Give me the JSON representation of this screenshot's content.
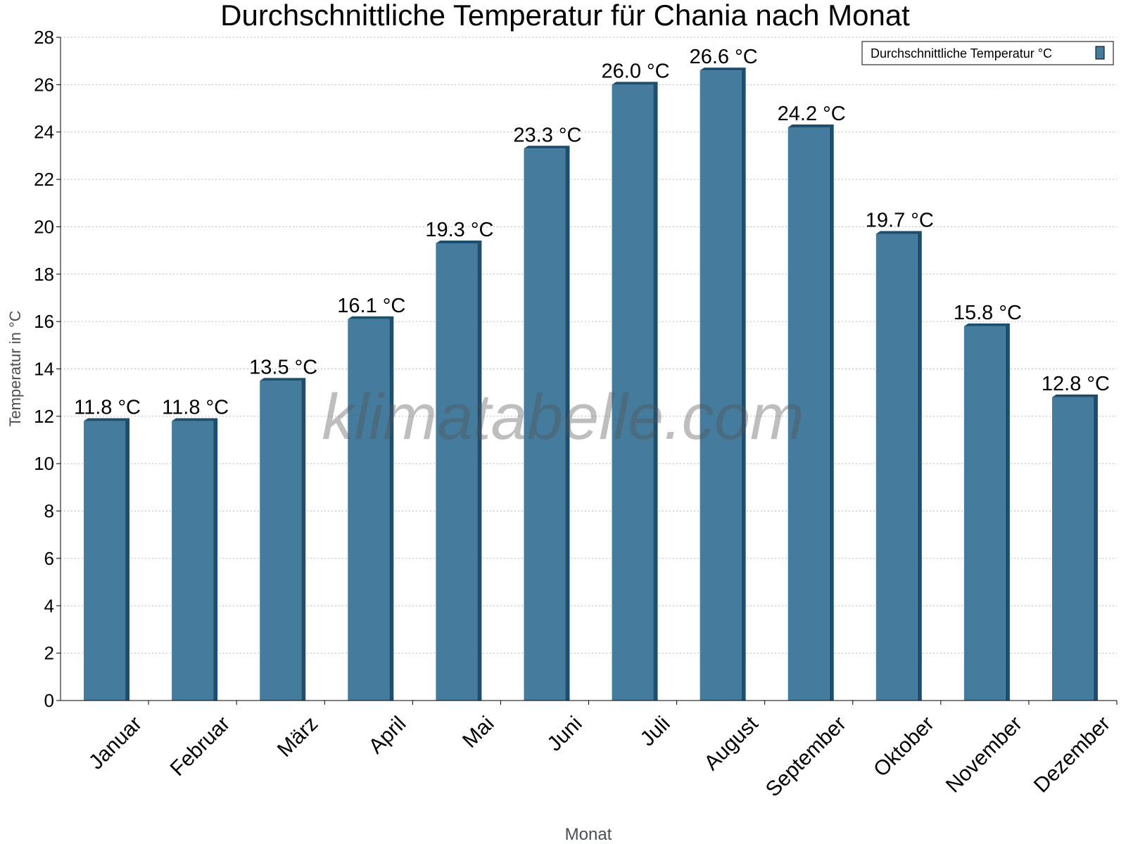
{
  "chart_data": {
    "type": "bar",
    "title": "Durchschnittliche Temperatur für Chania nach Monat",
    "xlabel": "Monat",
    "ylabel": "Temperatur in °C",
    "categories": [
      "Januar",
      "Februar",
      "März",
      "April",
      "Mai",
      "Juni",
      "Juli",
      "August",
      "September",
      "Oktober",
      "November",
      "Dezember"
    ],
    "series": [
      {
        "name": "Durchschnittliche Temperatur °C",
        "values": [
          11.8,
          11.8,
          13.5,
          16.1,
          19.3,
          23.3,
          26.0,
          26.6,
          24.2,
          19.7,
          15.8,
          12.8
        ],
        "color": "#457b9d",
        "edge_color": "#1d4e6e"
      }
    ],
    "data_labels": [
      "11.8 °C",
      "11.8 °C",
      "13.5 °C",
      "16.1 °C",
      "19.3 °C",
      "23.3 °C",
      "26.0 °C",
      "26.6 °C",
      "24.2 °C",
      "19.7 °C",
      "15.8 °C",
      "12.8 °C"
    ],
    "ylim": [
      0,
      28
    ],
    "yticks": [
      0,
      2,
      4,
      6,
      8,
      10,
      12,
      14,
      16,
      18,
      20,
      22,
      24,
      26,
      28
    ],
    "grid": true,
    "legend": "top-right",
    "watermark": "klimatabelle.com"
  }
}
